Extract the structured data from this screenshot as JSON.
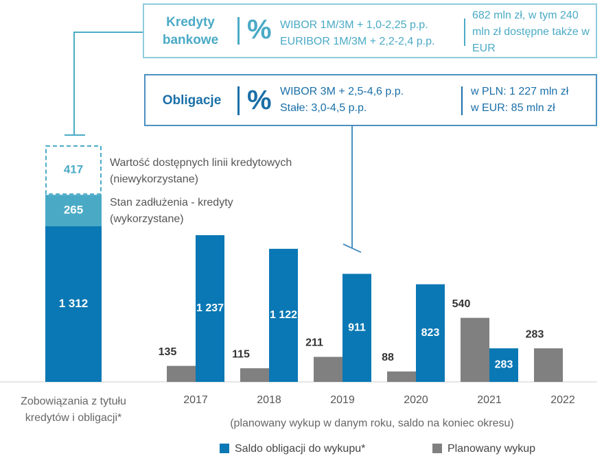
{
  "info_boxes": [
    {
      "title": "Kredyty bankowe",
      "symbol": "%",
      "rates": [
        "WIBOR 1M/3M + 1,0-2,25 p.p.",
        "EURIBOR 1M/3M + 2,2-2,4 p.p."
      ],
      "amounts": [
        "682 mln zł, w tym 240 mln zł dostępne także w EUR"
      ]
    },
    {
      "title": "Obligacje",
      "symbol": "%",
      "rates": [
        "WIBOR 3M + 2,5-4,6 p.p.",
        "Stałe: 3,0-4,5 p.p."
      ],
      "amounts": [
        "w PLN: 1 227 mln zł",
        "w EUR: 85 mln zł"
      ]
    }
  ],
  "chart_data": [
    {
      "type": "stacked_bar",
      "categories": [
        "Zobowiązania z tytułu kredytów i obligacji*"
      ],
      "series": [
        {
          "color": "#0a78b4",
          "values": [
            1312
          ],
          "value_labels": [
            "1 312"
          ]
        },
        {
          "name": "Stan zadłużenia - kredyty (wykorzystane)",
          "color": "#4aaac6",
          "values": [
            265
          ]
        },
        {
          "name": "Wartość dostępnych linii kredytowych (niewykorzystane)",
          "color": "#4aaac6",
          "values": [
            417
          ],
          "dashed": true
        }
      ]
    },
    {
      "type": "bar",
      "subtitle": "(planowany wykup w danym roku, saldo na koniec okresu)",
      "categories": [
        "2017",
        "2018",
        "2019",
        "2020",
        "2021",
        "2022"
      ],
      "series": [
        {
          "name": "Planowany wykup",
          "color": "#808080",
          "values": [
            135,
            115,
            211,
            88,
            540,
            283
          ]
        },
        {
          "name": "Saldo obligacji do wykupu*",
          "color": "#0a78b4",
          "values": [
            1237,
            1122,
            911,
            823,
            283,
            null
          ],
          "value_labels": [
            "1 237",
            "1 122",
            "911",
            "823",
            "283",
            null
          ]
        }
      ]
    }
  ]
}
